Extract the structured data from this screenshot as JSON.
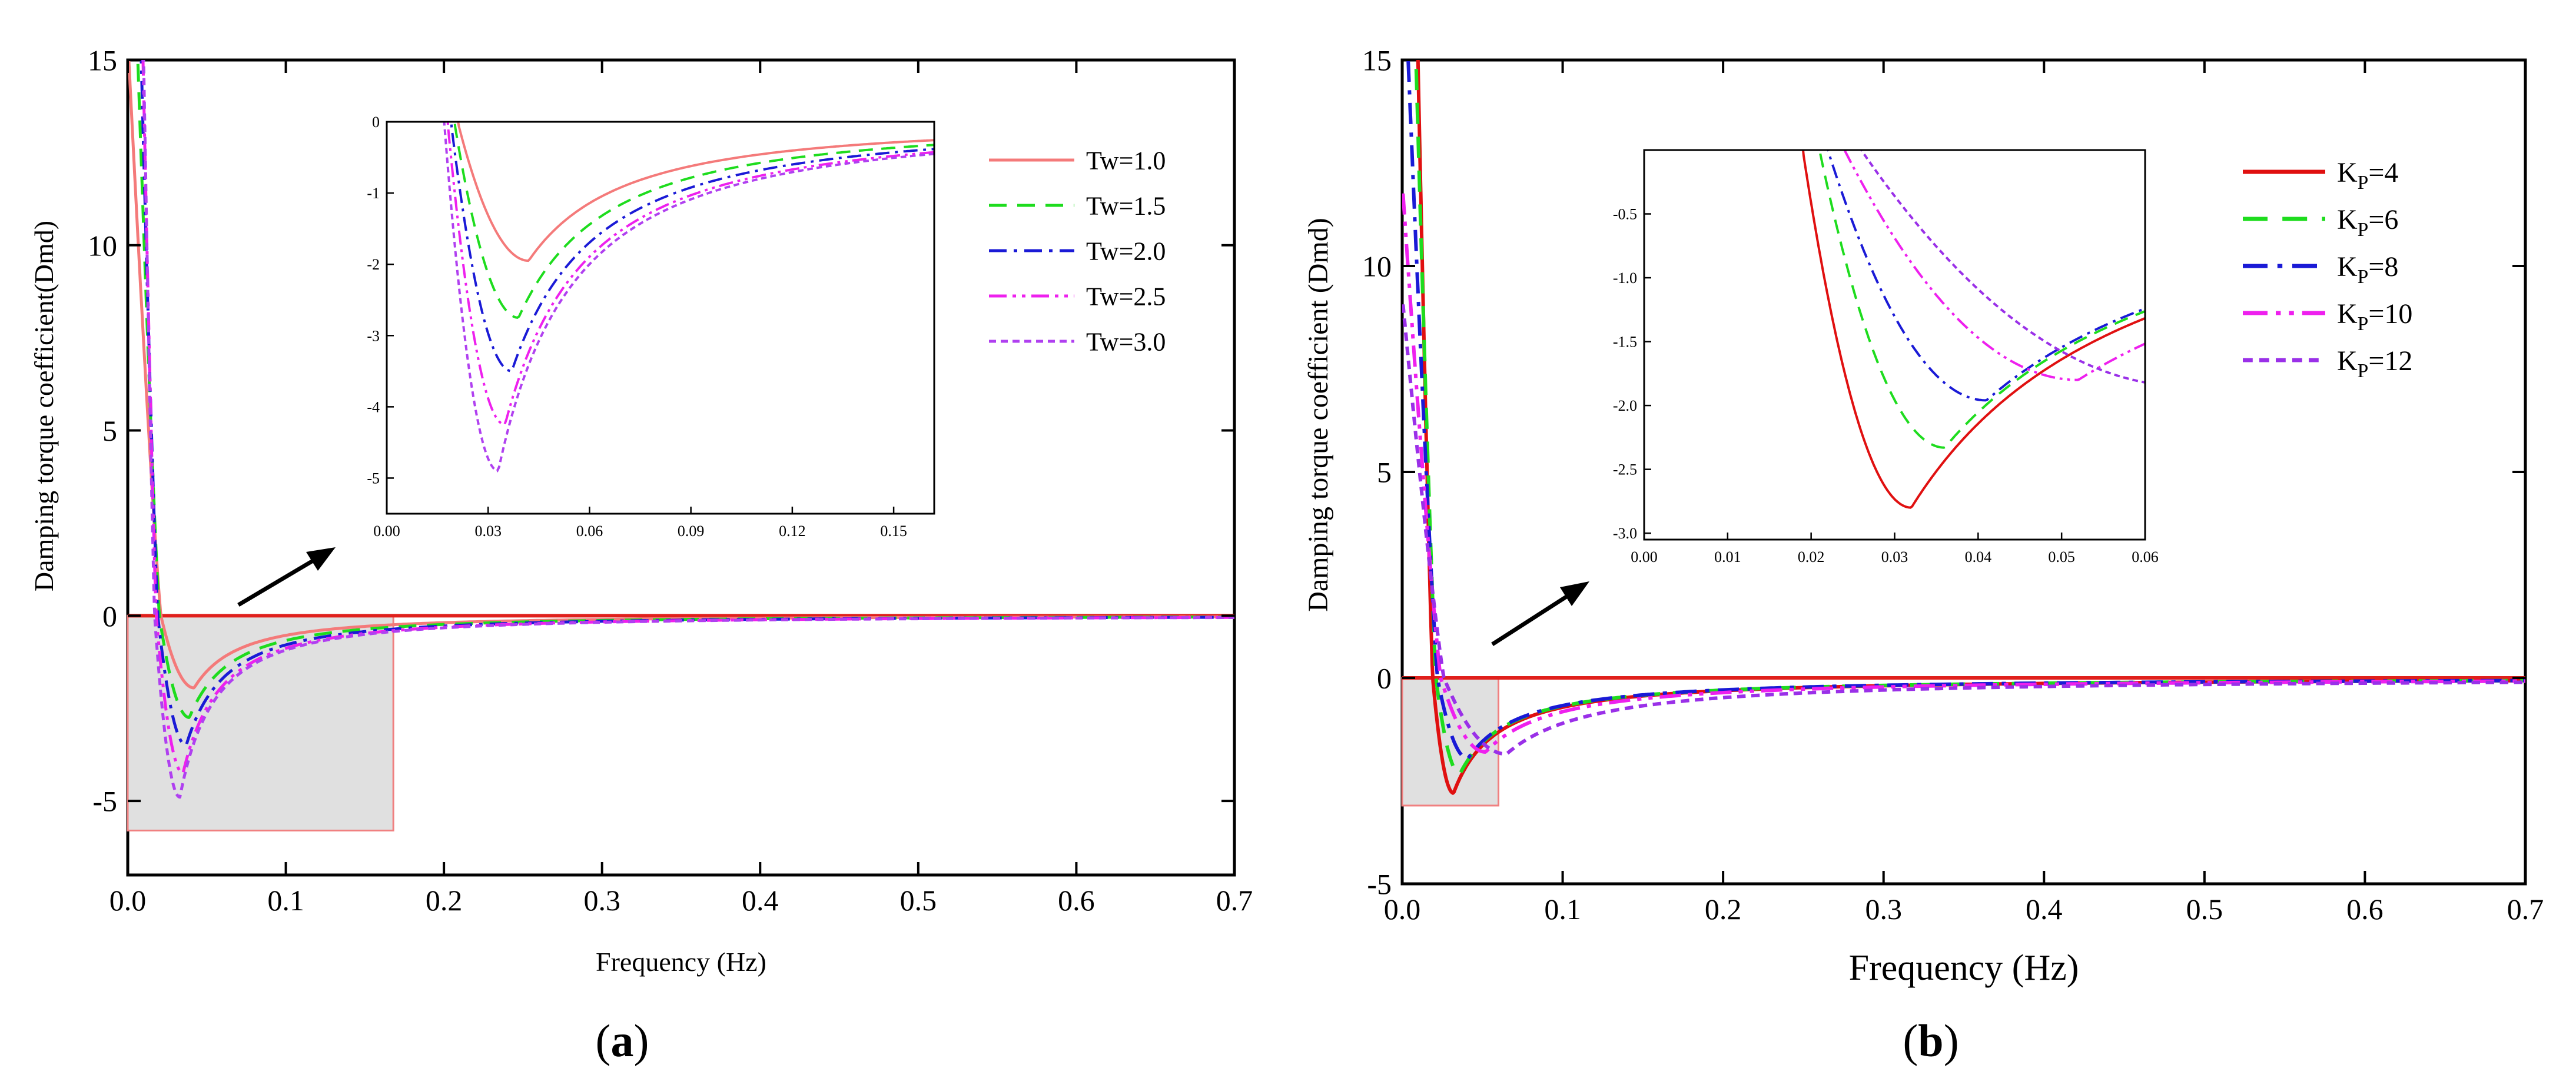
{
  "chart_data": [
    {
      "type": "line",
      "panel_label": "a",
      "xlabel": "Frequency (Hz)",
      "ylabel": "Damping torque coefficient(Dmd)",
      "xlim": [
        0,
        0.7
      ],
      "ylim": [
        -7,
        15
      ],
      "xticks": [
        "0.0",
        "0.1",
        "0.2",
        "0.3",
        "0.4",
        "0.5",
        "0.6",
        "0.7"
      ],
      "yticks": [
        "-5",
        "0",
        "5",
        "10",
        "15"
      ],
      "zero_line_color": "#e0201c",
      "highlight_region": {
        "x": [
          0,
          0.168
        ],
        "y": [
          -5.8,
          0
        ],
        "fill": "#e0e0e0",
        "stroke": "#f08080"
      },
      "series": [
        {
          "name": "Tw=1.0",
          "color": "#f47a7a",
          "dash": "solid",
          "min_x": 0.042,
          "min_y": -1.95,
          "zero_x": 0.021,
          "b": 1.5
        },
        {
          "name": "Tw=1.5",
          "color": "#1edc1e",
          "dash": "dash",
          "min_x": 0.039,
          "min_y": -2.75,
          "zero_x": 0.02,
          "b": 1.5
        },
        {
          "name": "Tw=2.0",
          "color": "#1a1ad6",
          "dash": "dashdot",
          "min_x": 0.037,
          "min_y": -3.5,
          "zero_x": 0.019,
          "b": 1.5
        },
        {
          "name": "Tw=2.5",
          "color": "#ee20ee",
          "dash": "dashdotdot",
          "min_x": 0.035,
          "min_y": -4.25,
          "zero_x": 0.018,
          "b": 1.5
        },
        {
          "name": "Tw=3.0",
          "color": "#b040f0",
          "dash": "shortdash",
          "min_x": 0.033,
          "min_y": -4.9,
          "zero_x": 0.017,
          "b": 1.5
        }
      ],
      "inset": {
        "xlim": [
          0,
          0.162
        ],
        "ylim": [
          -5.5,
          0
        ],
        "xticks": [
          "0.00",
          "0.03",
          "0.06",
          "0.09",
          "0.12",
          "0.15"
        ],
        "yticks": [
          "0",
          "-1",
          "-2",
          "-3",
          "-4",
          "-5"
        ]
      }
    },
    {
      "type": "line",
      "panel_label": "b",
      "xlabel": "Frequency (Hz)",
      "ylabel": "Damping torque coefficient (Dmd)",
      "xlim": [
        0,
        0.7
      ],
      "ylim": [
        -5,
        15
      ],
      "xticks": [
        "0.0",
        "0.1",
        "0.2",
        "0.3",
        "0.4",
        "0.5",
        "0.6",
        "0.7"
      ],
      "yticks": [
        "-5",
        "0",
        "5",
        "10",
        "15"
      ],
      "zero_line_color": "#e0201c",
      "highlight_region": {
        "x": [
          0,
          0.06
        ],
        "y": [
          -3.1,
          0
        ],
        "fill": "#e0e0e0",
        "stroke": "#f08080"
      },
      "series": [
        {
          "name": "KP=4",
          "label_main": "K",
          "label_sub": "P",
          "label_val": "=4",
          "color": "#e01010",
          "dash": "solid",
          "min_x": 0.032,
          "min_y": -2.8,
          "zero_x": 0.019,
          "b": 1.2
        },
        {
          "name": "KP=6",
          "label_main": "K",
          "label_sub": "P",
          "label_val": "=6",
          "color": "#1edc1e",
          "dash": "dash",
          "min_x": 0.036,
          "min_y": -2.33,
          "zero_x": 0.021,
          "b": 1.2
        },
        {
          "name": "KP=8",
          "label_main": "K",
          "label_sub": "P",
          "label_val": "=8",
          "color": "#1a1ad6",
          "dash": "dashdot",
          "min_x": 0.041,
          "min_y": -1.96,
          "zero_x": 0.022,
          "b": 1.2
        },
        {
          "name": "KP=10",
          "label_main": "K",
          "label_sub": "P",
          "label_val": "=10",
          "color": "#ee20ee",
          "dash": "dashdotdot",
          "min_x": 0.052,
          "min_y": -1.8,
          "zero_x": 0.024,
          "b": 1.2
        },
        {
          "name": "KP=12",
          "label_main": "K",
          "label_sub": "P",
          "label_val": "=12",
          "color": "#9a30e8",
          "dash": "shortdash",
          "min_x": 0.065,
          "min_y": -1.85,
          "zero_x": 0.026,
          "b": 1.2
        }
      ],
      "inset": {
        "xlim": [
          0,
          0.06
        ],
        "ylim": [
          -3.05,
          0
        ],
        "xticks": [
          "0.00",
          "0.01",
          "0.02",
          "0.03",
          "0.04",
          "0.05",
          "0.06"
        ],
        "yticks": [
          "-0.5",
          "-1.0",
          "-1.5",
          "-2.0",
          "-2.5",
          "-3.0"
        ]
      }
    }
  ]
}
